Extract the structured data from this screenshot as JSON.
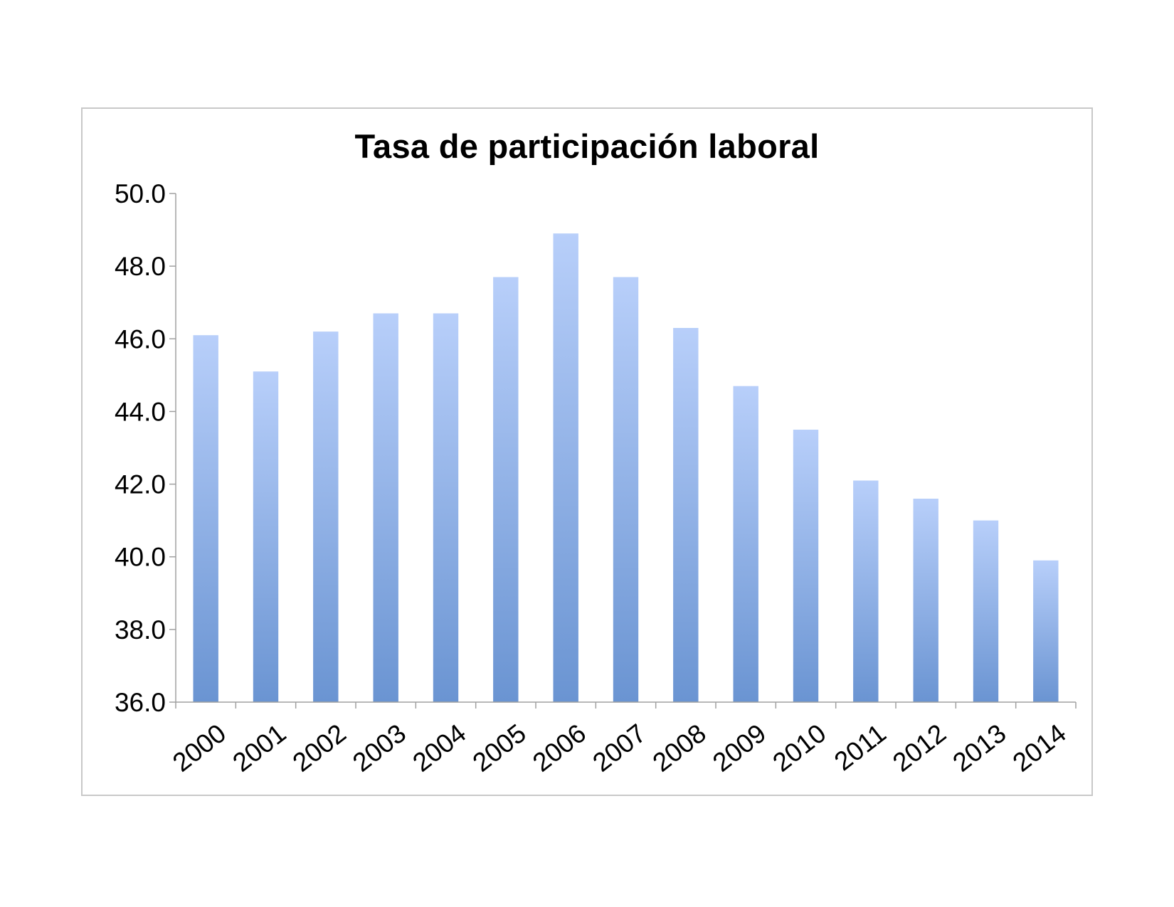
{
  "chart_data": {
    "type": "bar",
    "title": "Tasa de participación laboral",
    "xlabel": "",
    "ylabel": "",
    "ylim": [
      36.0,
      50.0
    ],
    "yticks": [
      "36.0",
      "38.0",
      "40.0",
      "42.0",
      "44.0",
      "46.0",
      "48.0",
      "50.0"
    ],
    "categories": [
      "2000",
      "2001",
      "2002",
      "2003",
      "2004",
      "2005",
      "2006",
      "2007",
      "2008",
      "2009",
      "2010",
      "2011",
      "2012",
      "2013",
      "2014"
    ],
    "values": [
      46.1,
      45.1,
      46.2,
      46.7,
      46.7,
      47.7,
      48.9,
      47.7,
      46.3,
      44.7,
      43.5,
      42.1,
      41.6,
      41.0,
      39.9
    ],
    "grid": false,
    "legend": "none",
    "colors": {
      "bar_top": "#b8cffa",
      "bar_bottom": "#6a94d2",
      "axis": "#a0a0a0",
      "frame": "#c8c8c8"
    }
  }
}
